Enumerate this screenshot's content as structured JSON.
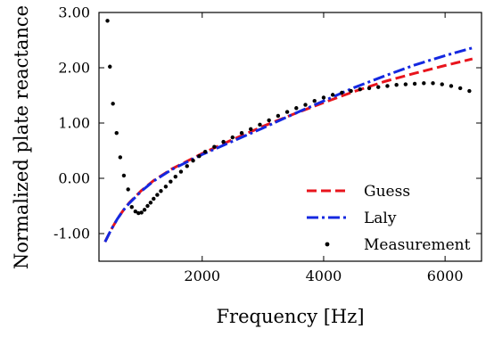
{
  "chart_data": {
    "type": "line",
    "title": "",
    "xlabel": "Frequency [Hz]",
    "ylabel": "Normalized plate reactance",
    "xlim": [
      300,
      6600
    ],
    "ylim": [
      -1.5,
      3.0
    ],
    "grid": false,
    "legend_position": "bottom-right",
    "x_ticks": [
      {
        "value": 2000,
        "label": "2000"
      },
      {
        "value": 4000,
        "label": "4000"
      },
      {
        "value": 6000,
        "label": "6000"
      }
    ],
    "y_ticks": [
      {
        "value": -1.0,
        "label": "-1.00"
      },
      {
        "value": 0.0,
        "label": "0.00"
      },
      {
        "value": 1.0,
        "label": "1.00"
      },
      {
        "value": 2.0,
        "label": "2.00"
      },
      {
        "value": 3.0,
        "label": "3.00"
      }
    ],
    "series": [
      {
        "name": "Guess",
        "style": "dashed",
        "color": "#e8141c",
        "x": [
          400,
          500,
          600,
          700,
          800,
          1000,
          1200,
          1500,
          2000,
          2500,
          3000,
          3500,
          4000,
          4500,
          5000,
          5500,
          6000,
          6450
        ],
        "y": [
          -1.15,
          -0.93,
          -0.74,
          -0.58,
          -0.44,
          -0.22,
          -0.04,
          0.17,
          0.45,
          0.7,
          0.94,
          1.16,
          1.37,
          1.57,
          1.75,
          1.9,
          2.04,
          2.16
        ]
      },
      {
        "name": "Laly",
        "style": "dashdot",
        "color": "#1428e0",
        "x": [
          400,
          500,
          600,
          700,
          800,
          1000,
          1200,
          1500,
          2000,
          2500,
          3000,
          3500,
          4000,
          4500,
          5000,
          5500,
          6000,
          6450
        ],
        "y": [
          -1.15,
          -0.93,
          -0.74,
          -0.58,
          -0.45,
          -0.23,
          -0.05,
          0.16,
          0.43,
          0.67,
          0.91,
          1.16,
          1.4,
          1.64,
          1.85,
          2.05,
          2.22,
          2.36
        ]
      },
      {
        "name": "Measurement",
        "style": "points",
        "color": "#000000",
        "x": [
          440,
          480,
          530,
          590,
          650,
          710,
          780,
          840,
          900,
          950,
          1000,
          1050,
          1100,
          1150,
          1200,
          1260,
          1320,
          1400,
          1480,
          1560,
          1650,
          1750,
          1850,
          1950,
          2050,
          2200,
          2350,
          2500,
          2650,
          2800,
          2950,
          3100,
          3250,
          3400,
          3550,
          3700,
          3850,
          4000,
          4150,
          4300,
          4450,
          4600,
          4750,
          4900,
          5050,
          5200,
          5350,
          5500,
          5650,
          5800,
          5950,
          6100,
          6250,
          6400
        ],
        "y": [
          2.85,
          2.02,
          1.35,
          0.82,
          0.38,
          0.05,
          -0.2,
          -0.52,
          -0.6,
          -0.63,
          -0.62,
          -0.57,
          -0.5,
          -0.44,
          -0.37,
          -0.3,
          -0.23,
          -0.15,
          -0.06,
          0.03,
          0.12,
          0.22,
          0.32,
          0.4,
          0.48,
          0.57,
          0.66,
          0.74,
          0.82,
          0.89,
          0.97,
          1.05,
          1.13,
          1.2,
          1.27,
          1.33,
          1.4,
          1.46,
          1.51,
          1.55,
          1.58,
          1.61,
          1.63,
          1.65,
          1.67,
          1.69,
          1.7,
          1.71,
          1.72,
          1.72,
          1.7,
          1.67,
          1.63,
          1.58
        ]
      }
    ]
  }
}
